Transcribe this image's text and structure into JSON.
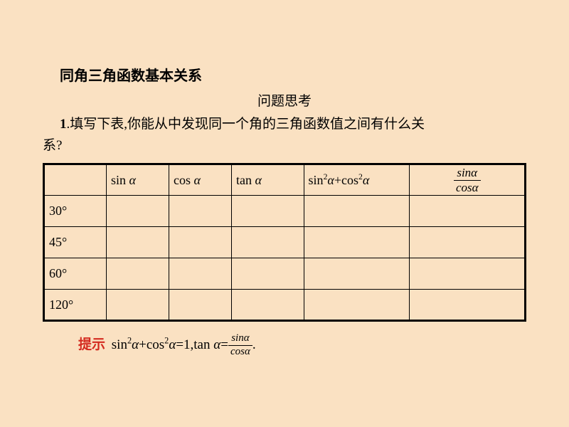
{
  "heading": "同角三角函数基本关系",
  "subtitle": "问题思考",
  "question_num": "1",
  "question_text_part1": ".填写下表,你能从中发现同一个角的三角函数值之间有什么关",
  "question_text_part2": "系?",
  "table": {
    "headers": {
      "blank": "",
      "sin": "sin ",
      "cos": "cos ",
      "tan": "tan ",
      "sumsq_pre": "sin",
      "sumsq_mid": "+cos",
      "ratio_num": "sinα",
      "ratio_den": "cosα"
    },
    "alpha": "α",
    "rows": [
      "30°",
      "45°",
      "60°",
      "120°"
    ]
  },
  "answer": {
    "hint_label": "提示",
    "eq_part1": "sin",
    "eq_part2": "+cos",
    "eq_part3": "=1,tan ",
    "eq_part4": "=",
    "frac_num": "sinα",
    "frac_den": "cosα",
    "period": "."
  },
  "colors": {
    "background": "#fae1c2",
    "text": "#000000",
    "hint": "#d42a1f",
    "border": "#000000"
  }
}
